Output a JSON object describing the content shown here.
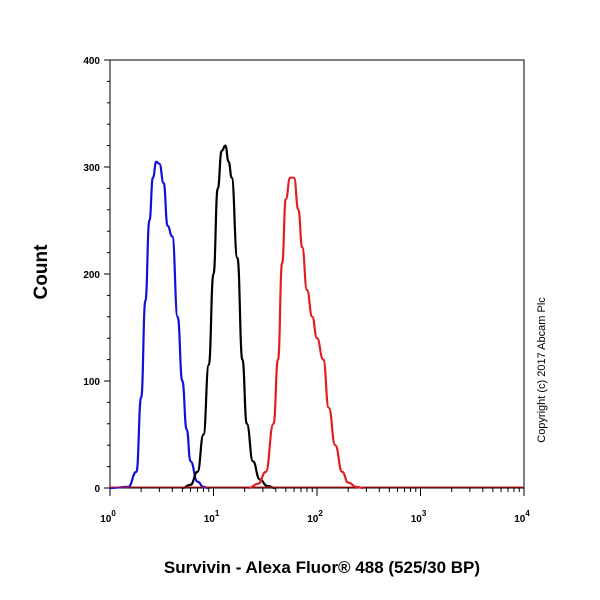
{
  "chart_data": {
    "type": "line",
    "xlabel": "Survivin - Alexa Fluor® 488 (525/30 BP)",
    "ylabel": "Count",
    "x_scale": "log",
    "xlim": [
      1,
      10000
    ],
    "ylim": [
      0,
      400
    ],
    "x_ticks": [
      {
        "value": 1,
        "base": "10",
        "exp": "0"
      },
      {
        "value": 10,
        "base": "10",
        "exp": "1"
      },
      {
        "value": 100,
        "base": "10",
        "exp": "2"
      },
      {
        "value": 1000,
        "base": "10",
        "exp": "3"
      },
      {
        "value": 10000,
        "base": "10",
        "exp": "4"
      }
    ],
    "y_ticks": [
      0,
      100,
      200,
      300,
      400
    ],
    "grid": false,
    "annotation": "Copyright (c) 2017 Abcam Plc",
    "series": [
      {
        "color": "#1010d8",
        "points": [
          [
            1.0,
            0
          ],
          [
            1.5,
            1
          ],
          [
            1.8,
            15
          ],
          [
            2.0,
            85
          ],
          [
            2.2,
            175
          ],
          [
            2.4,
            250
          ],
          [
            2.6,
            290
          ],
          [
            2.8,
            305
          ],
          [
            3.0,
            303
          ],
          [
            3.3,
            285
          ],
          [
            3.6,
            245
          ],
          [
            4.0,
            235
          ],
          [
            4.5,
            160
          ],
          [
            5.0,
            100
          ],
          [
            5.5,
            55
          ],
          [
            6.0,
            25
          ],
          [
            7.0,
            6
          ],
          [
            8.0,
            1
          ],
          [
            9.0,
            0
          ]
        ]
      },
      {
        "color": "#000000",
        "points": [
          [
            5.0,
            0
          ],
          [
            6.0,
            3
          ],
          [
            7.0,
            15
          ],
          [
            8.0,
            50
          ],
          [
            9.0,
            115
          ],
          [
            10.0,
            200
          ],
          [
            11.0,
            280
          ],
          [
            12.0,
            315
          ],
          [
            13.0,
            320
          ],
          [
            14.0,
            305
          ],
          [
            15.0,
            290
          ],
          [
            17.0,
            215
          ],
          [
            19.0,
            120
          ],
          [
            21.0,
            60
          ],
          [
            24.0,
            25
          ],
          [
            28.0,
            8
          ],
          [
            33.0,
            2
          ],
          [
            40.0,
            0
          ]
        ]
      },
      {
        "color": "#e02020",
        "points": [
          [
            22.0,
            0
          ],
          [
            27.0,
            4
          ],
          [
            32.0,
            15
          ],
          [
            38.0,
            60
          ],
          [
            42.0,
            120
          ],
          [
            46.0,
            210
          ],
          [
            50.0,
            270
          ],
          [
            55.0,
            290
          ],
          [
            60.0,
            290
          ],
          [
            66.0,
            260
          ],
          [
            72.0,
            225
          ],
          [
            80.0,
            185
          ],
          [
            90.0,
            160
          ],
          [
            100.0,
            140
          ],
          [
            115.0,
            120
          ],
          [
            130.0,
            75
          ],
          [
            150.0,
            40
          ],
          [
            175.0,
            15
          ],
          [
            200.0,
            5
          ],
          [
            240.0,
            1
          ],
          [
            280.0,
            0
          ]
        ]
      }
    ]
  }
}
